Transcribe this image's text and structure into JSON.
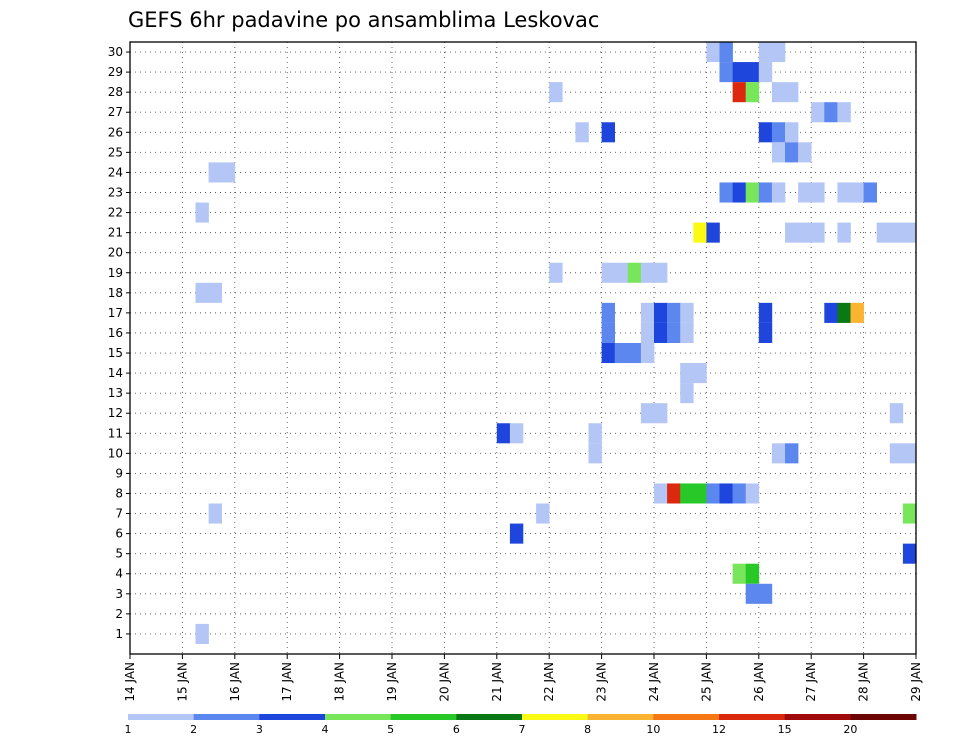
{
  "chart_data": {
    "type": "heatmap",
    "title": "GEFS 6hr padavine po ansamblima Leskovac",
    "xlabel": "",
    "ylabel": "",
    "x_ticks": [
      "14 JAN",
      "15 JAN",
      "16 JAN",
      "17 JAN",
      "18 JAN",
      "19 JAN",
      "20 JAN",
      "21 JAN",
      "22 JAN",
      "23 JAN",
      "24 JAN",
      "25 JAN",
      "26 JAN",
      "27 JAN",
      "28 JAN",
      "29 JAN"
    ],
    "y_ticks": [
      1,
      2,
      3,
      4,
      5,
      6,
      7,
      8,
      9,
      10,
      11,
      12,
      13,
      14,
      15,
      16,
      17,
      18,
      19,
      20,
      21,
      22,
      23,
      24,
      25,
      26,
      27,
      28,
      29,
      30
    ],
    "x_range_days": [
      14,
      29
    ],
    "y_range": [
      0,
      30.5
    ],
    "grid": true,
    "time_step_hours": 6,
    "legend": {
      "placement": "bottom",
      "labels": [
        "1",
        "2",
        "3",
        "4",
        "5",
        "6",
        "7",
        "8",
        "10",
        "12",
        "15",
        "20"
      ],
      "colors": [
        "#b4c6f5",
        "#5c87ee",
        "#1e46dc",
        "#78e65a",
        "#28c828",
        "#0a7814",
        "#fafa14",
        "#fab432",
        "#f57814",
        "#dc280f",
        "#a00a0a",
        "#6e0505"
      ]
    },
    "cells_note": "each cell: [member, start time in days, precipitation class index 0..11 into legend colors]",
    "cells": [
      [
        30,
        25.0,
        0
      ],
      [
        30,
        25.25,
        1
      ],
      [
        30,
        26.0,
        0
      ],
      [
        30,
        26.25,
        0
      ],
      [
        29,
        25.25,
        1
      ],
      [
        29,
        25.5,
        2
      ],
      [
        29,
        25.75,
        2
      ],
      [
        29,
        26.0,
        0
      ],
      [
        28,
        22.0,
        0
      ],
      [
        28,
        25.5,
        9
      ],
      [
        28,
        25.75,
        3
      ],
      [
        28,
        26.25,
        0
      ],
      [
        28,
        26.5,
        0
      ],
      [
        27,
        27.0,
        0
      ],
      [
        27,
        27.25,
        1
      ],
      [
        27,
        27.5,
        0
      ],
      [
        26,
        22.5,
        0
      ],
      [
        26,
        23.0,
        2
      ],
      [
        26,
        26.0,
        2
      ],
      [
        26,
        26.25,
        1
      ],
      [
        26,
        26.5,
        0
      ],
      [
        25,
        26.25,
        0
      ],
      [
        25,
        26.5,
        1
      ],
      [
        25,
        26.75,
        0
      ],
      [
        24,
        15.5,
        0
      ],
      [
        24,
        15.75,
        0
      ],
      [
        23,
        25.25,
        1
      ],
      [
        23,
        25.5,
        2
      ],
      [
        23,
        25.75,
        3
      ],
      [
        23,
        26.0,
        1
      ],
      [
        23,
        26.25,
        0
      ],
      [
        23,
        26.75,
        0
      ],
      [
        23,
        27.0,
        0
      ],
      [
        23,
        27.5,
        0
      ],
      [
        23,
        27.75,
        0
      ],
      [
        23,
        28.0,
        1
      ],
      [
        22,
        15.25,
        0
      ],
      [
        21,
        24.75,
        6
      ],
      [
        21,
        25.0,
        2
      ],
      [
        21,
        26.5,
        0
      ],
      [
        21,
        26.75,
        0
      ],
      [
        21,
        27.0,
        0
      ],
      [
        21,
        27.5,
        0
      ],
      [
        21,
        28.25,
        0
      ],
      [
        21,
        28.5,
        0
      ],
      [
        21,
        28.75,
        0
      ],
      [
        19,
        22.0,
        0
      ],
      [
        19,
        23.0,
        0
      ],
      [
        19,
        23.25,
        0
      ],
      [
        19,
        23.5,
        3
      ],
      [
        19,
        23.75,
        0
      ],
      [
        19,
        24.0,
        0
      ],
      [
        18,
        15.25,
        0
      ],
      [
        18,
        15.5,
        0
      ],
      [
        17,
        23.0,
        1
      ],
      [
        17,
        23.75,
        0
      ],
      [
        17,
        24.0,
        2
      ],
      [
        17,
        24.25,
        1
      ],
      [
        17,
        24.5,
        0
      ],
      [
        17,
        26.0,
        2
      ],
      [
        17,
        27.25,
        2
      ],
      [
        17,
        27.5,
        5
      ],
      [
        17,
        27.75,
        7
      ],
      [
        16,
        23.0,
        1
      ],
      [
        16,
        23.75,
        0
      ],
      [
        16,
        24.0,
        2
      ],
      [
        16,
        24.25,
        1
      ],
      [
        16,
        24.5,
        0
      ],
      [
        16,
        26.0,
        2
      ],
      [
        15,
        23.0,
        2
      ],
      [
        15,
        23.25,
        1
      ],
      [
        15,
        23.5,
        1
      ],
      [
        15,
        23.75,
        0
      ],
      [
        14,
        24.5,
        0
      ],
      [
        14,
        24.75,
        0
      ],
      [
        13,
        24.5,
        0
      ],
      [
        12,
        23.75,
        0
      ],
      [
        12,
        24.0,
        0
      ],
      [
        12,
        28.5,
        0
      ],
      [
        11,
        21.0,
        2
      ],
      [
        11,
        21.25,
        0
      ],
      [
        11,
        22.75,
        0
      ],
      [
        10,
        22.75,
        0
      ],
      [
        10,
        26.25,
        0
      ],
      [
        10,
        26.5,
        1
      ],
      [
        10,
        28.5,
        0
      ],
      [
        10,
        28.75,
        0
      ],
      [
        8,
        24.0,
        0
      ],
      [
        8,
        24.25,
        9
      ],
      [
        8,
        24.5,
        4
      ],
      [
        8,
        24.75,
        4
      ],
      [
        8,
        25.0,
        1
      ],
      [
        8,
        25.25,
        2
      ],
      [
        8,
        25.5,
        1
      ],
      [
        8,
        25.75,
        0
      ],
      [
        7,
        15.5,
        0
      ],
      [
        7,
        21.75,
        0
      ],
      [
        7,
        28.75,
        3
      ],
      [
        6,
        21.25,
        2
      ],
      [
        5,
        28.75,
        2
      ],
      [
        4,
        25.5,
        3
      ],
      [
        4,
        25.75,
        4
      ],
      [
        3,
        25.75,
        1
      ],
      [
        3,
        26.0,
        1
      ],
      [
        1,
        15.25,
        0
      ]
    ]
  }
}
